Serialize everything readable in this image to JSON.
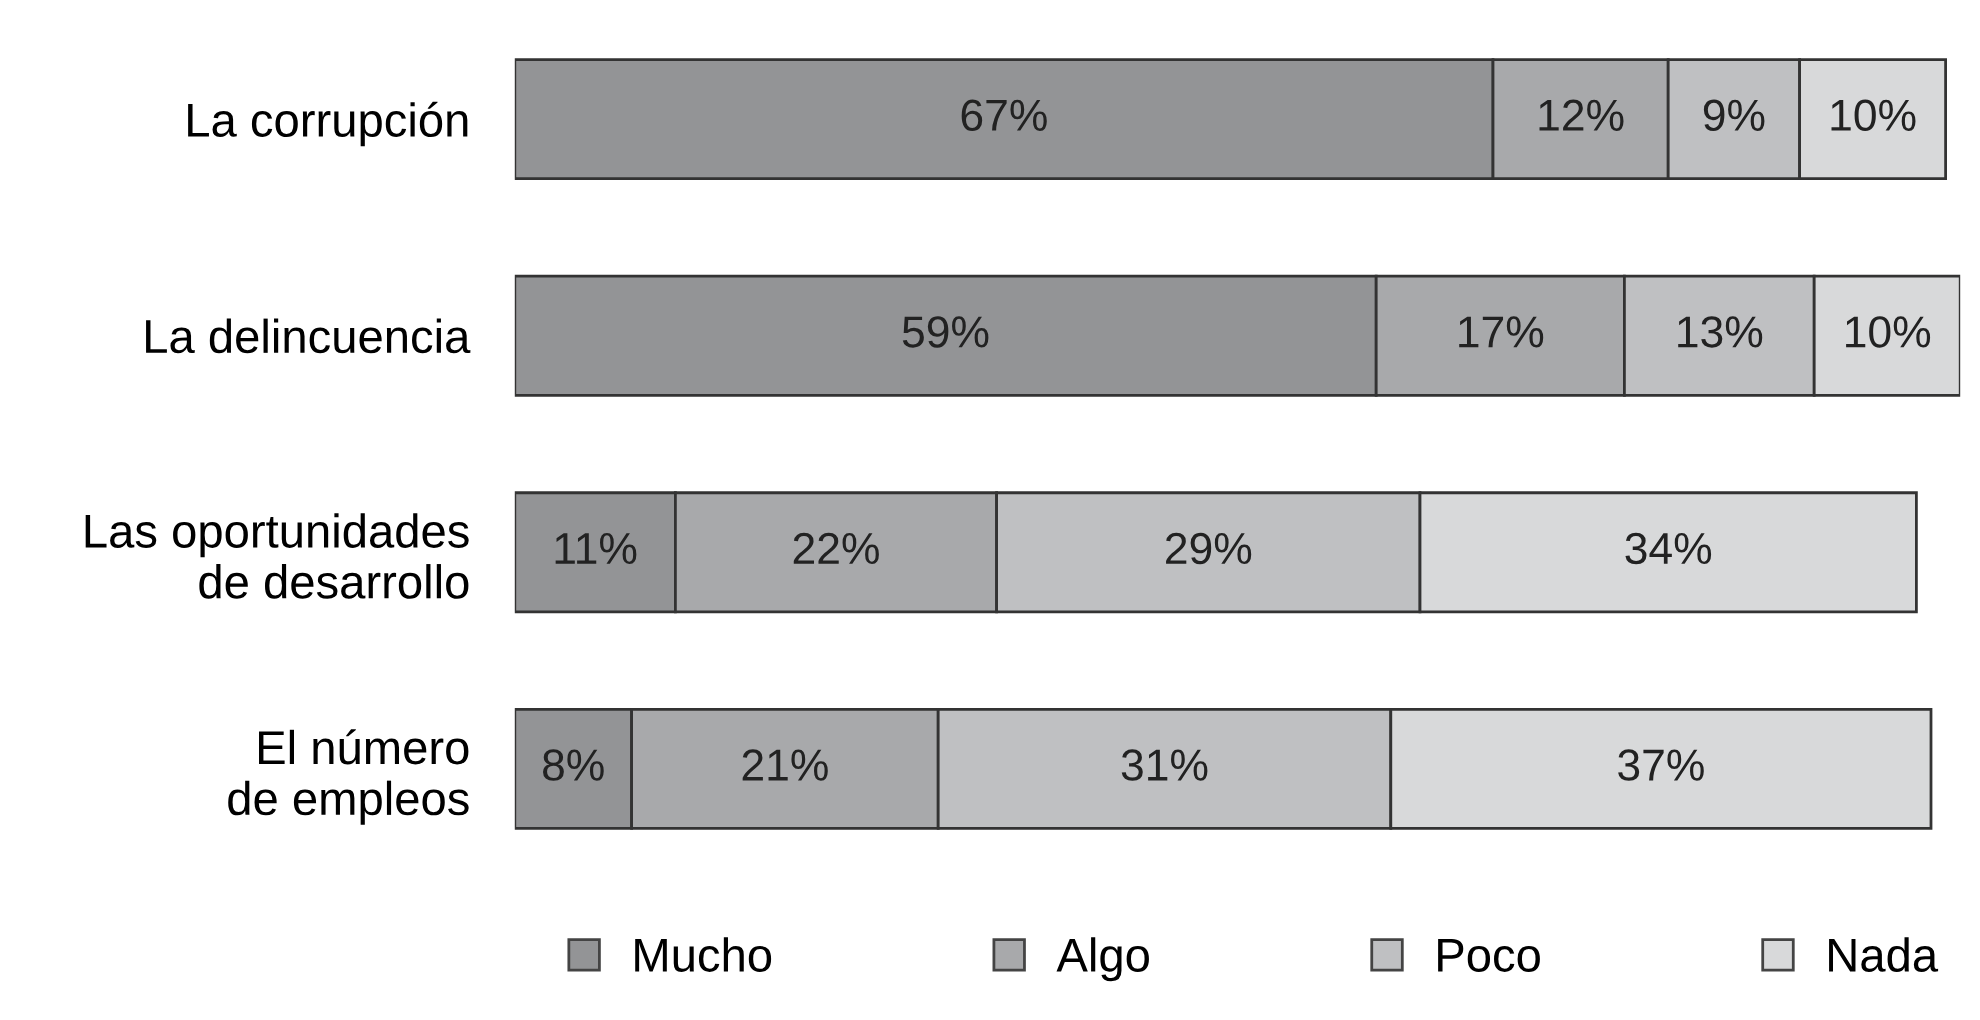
{
  "chart_data": {
    "type": "bar",
    "orientation": "horizontal",
    "stacked": true,
    "legend": "bottom",
    "marker": "square",
    "categories": [
      "La corrupción",
      "La delincuencia",
      "Las oportunidades\nde desarrollo",
      "El número\nde empleos"
    ],
    "series": [
      {
        "name": "Mucho",
        "color": "#939496",
        "values": [
          67,
          59,
          11,
          8
        ],
        "value_labels": [
          "67%",
          "59%",
          "11%",
          "8%"
        ]
      },
      {
        "name": "Algo",
        "color": "#a8a9ab",
        "values": [
          12,
          17,
          22,
          21
        ],
        "value_labels": [
          "12%",
          "17%",
          "22%",
          "21%"
        ]
      },
      {
        "name": "Poco",
        "color": "#bfc0c2",
        "values": [
          9,
          13,
          29,
          31
        ],
        "value_labels": [
          "9%",
          "13%",
          "29%",
          "31%"
        ]
      },
      {
        "name": "Nada",
        "color": "#d8d9da",
        "values": [
          10,
          10,
          34,
          37
        ],
        "value_labels": [
          "10%",
          "10%",
          "34%",
          "37%"
        ]
      }
    ]
  }
}
